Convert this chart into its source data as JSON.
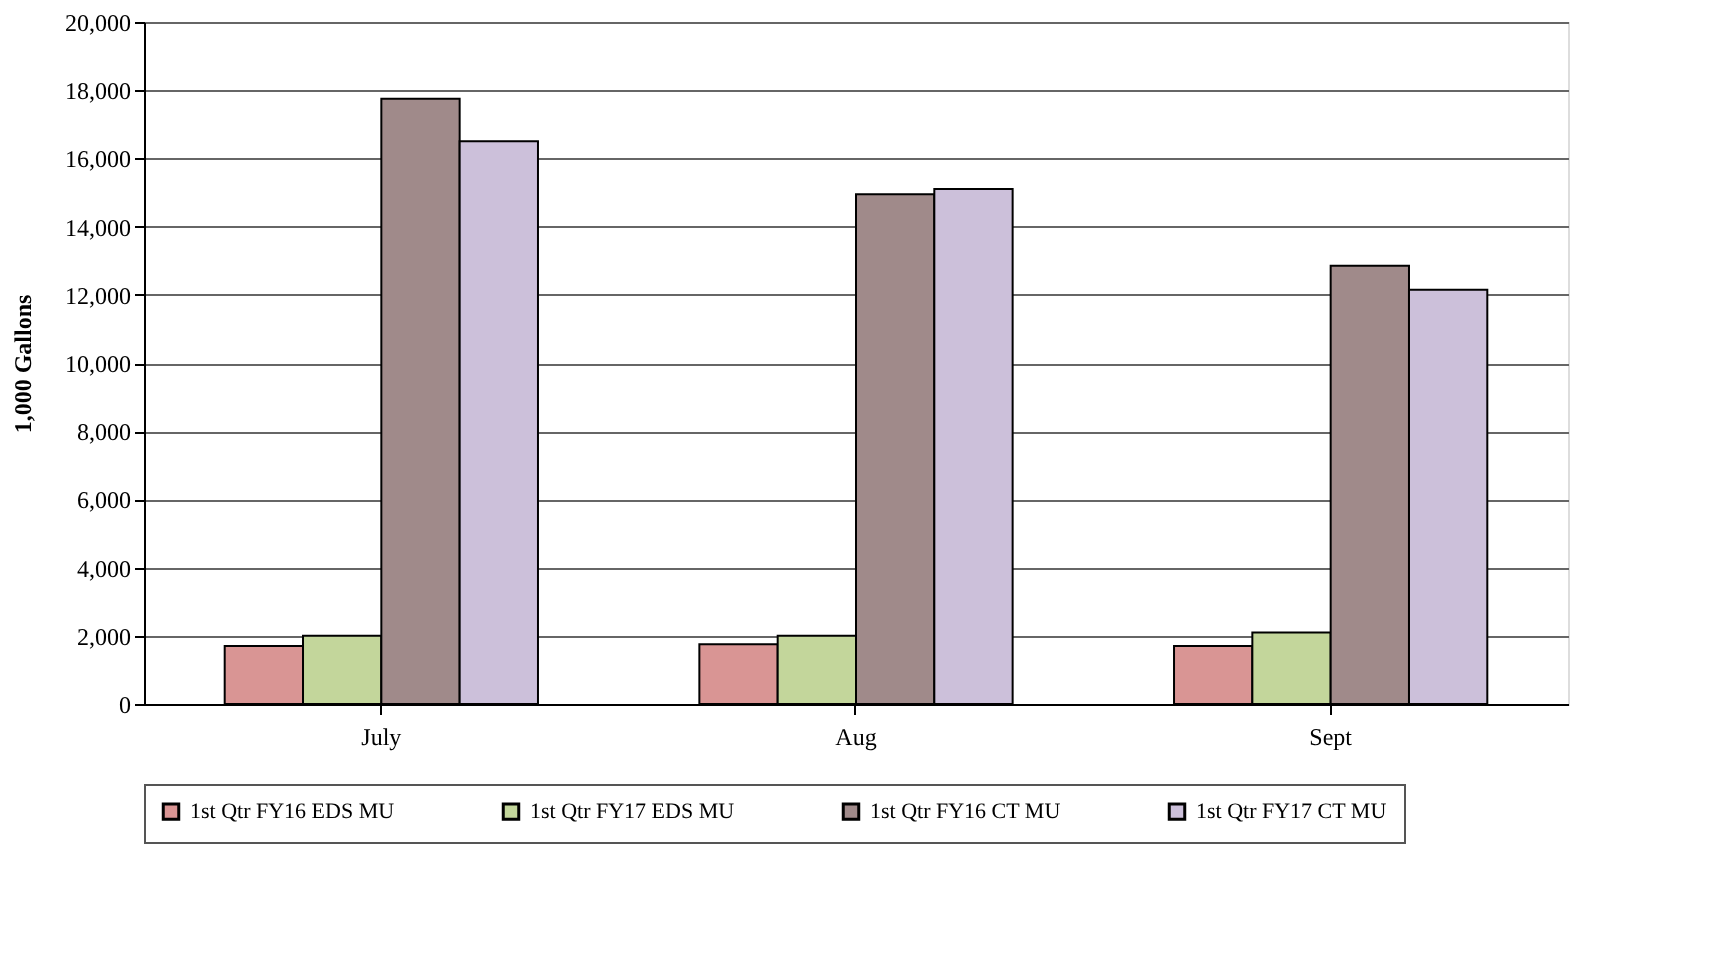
{
  "chart_data": {
    "type": "bar",
    "ylabel": "1,000 Gallons",
    "categories": [
      "July",
      "Aug",
      "Sept"
    ],
    "series": [
      {
        "name": "1st Qtr FY16 EDS MU",
        "color": "#d99594",
        "values": [
          1700,
          1750,
          1700
        ]
      },
      {
        "name": "1st Qtr FY17 EDS MU",
        "color": "#c3d69b",
        "values": [
          2000,
          2000,
          2100
        ]
      },
      {
        "name": "1st Qtr FY16 CT MU",
        "color": "#a08a8a",
        "values": [
          17750,
          14950,
          12850
        ]
      },
      {
        "name": "1st Qtr FY17 CT MU",
        "color": "#ccc0da",
        "values": [
          16500,
          15100,
          12150
        ]
      }
    ],
    "ylim": [
      0,
      20000
    ],
    "yticks": [
      0,
      {
        "value": 2000,
        "label": "2,000"
      },
      {
        "value": 4000,
        "label": "4,000"
      },
      {
        "value": 6000,
        "label": "6,000"
      },
      {
        "value": 8000,
        "label": "8,000"
      },
      {
        "value": 10000,
        "label": "10,000"
      },
      {
        "value": 12000,
        "label": "12,000"
      },
      {
        "value": 14000,
        "label": "14,000"
      },
      {
        "value": 16000,
        "label": "16,000"
      },
      {
        "value": 18000,
        "label": "18,000"
      },
      {
        "value": 20000,
        "label": "20,000"
      }
    ],
    "grid": "y",
    "legend": "bottom"
  }
}
